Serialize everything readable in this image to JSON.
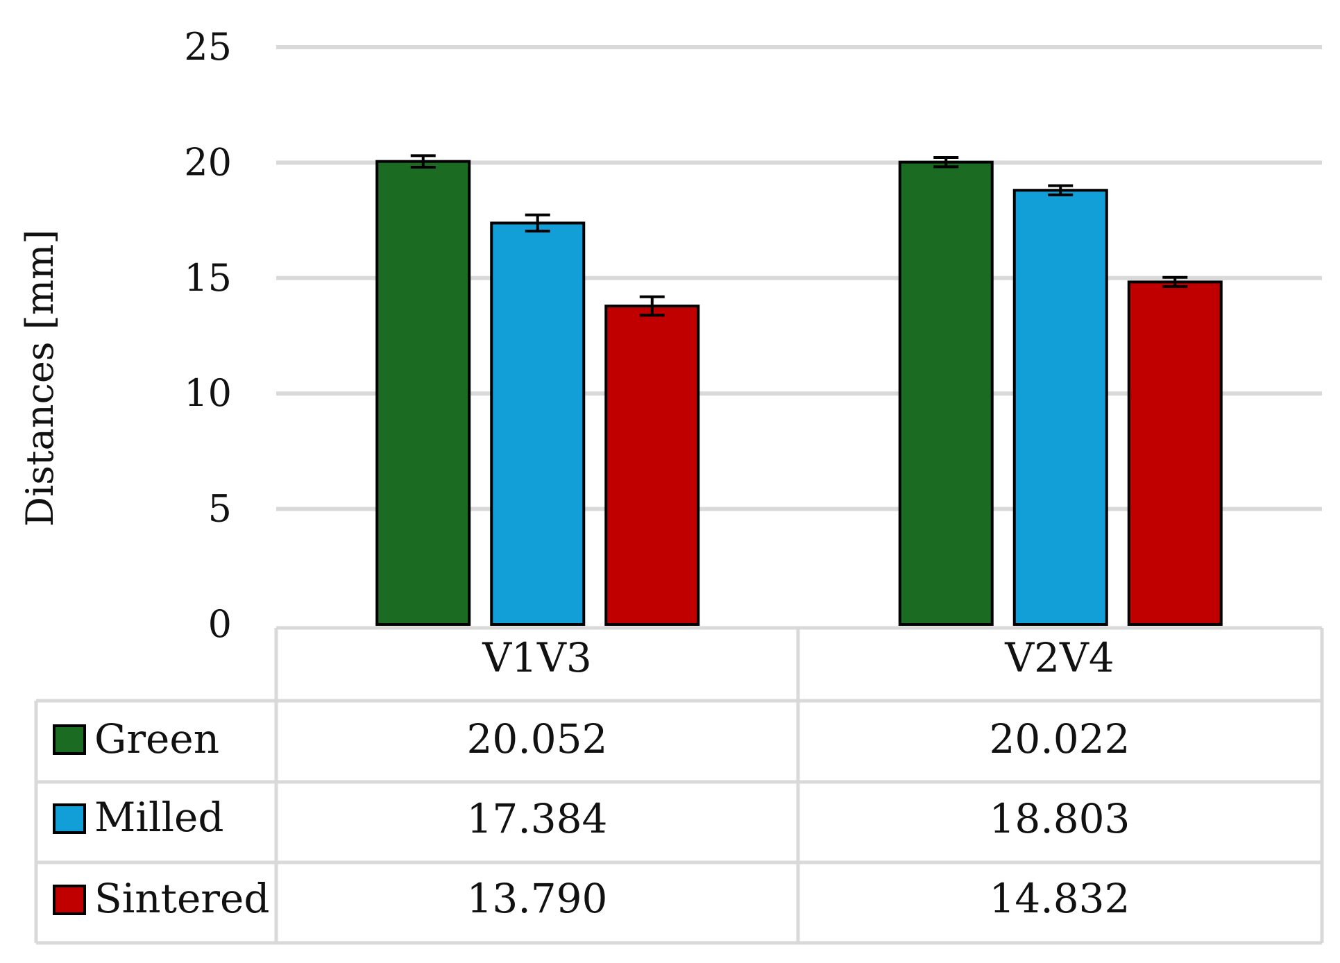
{
  "chart_data": {
    "type": "bar",
    "ylabel": "Distances [mm]",
    "ylim": [
      0,
      25
    ],
    "yticks": [
      0,
      5,
      10,
      15,
      20,
      25
    ],
    "grid": true,
    "categories": [
      "V1V3",
      "V2V4"
    ],
    "series": [
      {
        "name": "Green",
        "color": "#1b6b22",
        "values": [
          20.052,
          20.022
        ],
        "labels": [
          "20.052",
          "20.022"
        ],
        "errors": [
          0.25,
          0.2
        ]
      },
      {
        "name": "Milled",
        "color": "#129fd8",
        "values": [
          17.384,
          18.803
        ],
        "labels": [
          "17.384",
          "18.803"
        ],
        "errors": [
          0.35,
          0.2
        ]
      },
      {
        "name": "Sintered",
        "color": "#c00000",
        "values": [
          13.79,
          14.832
        ],
        "labels": [
          "13.790",
          "14.832"
        ],
        "errors": [
          0.4,
          0.2
        ]
      }
    ],
    "legend": "data-table-left"
  }
}
